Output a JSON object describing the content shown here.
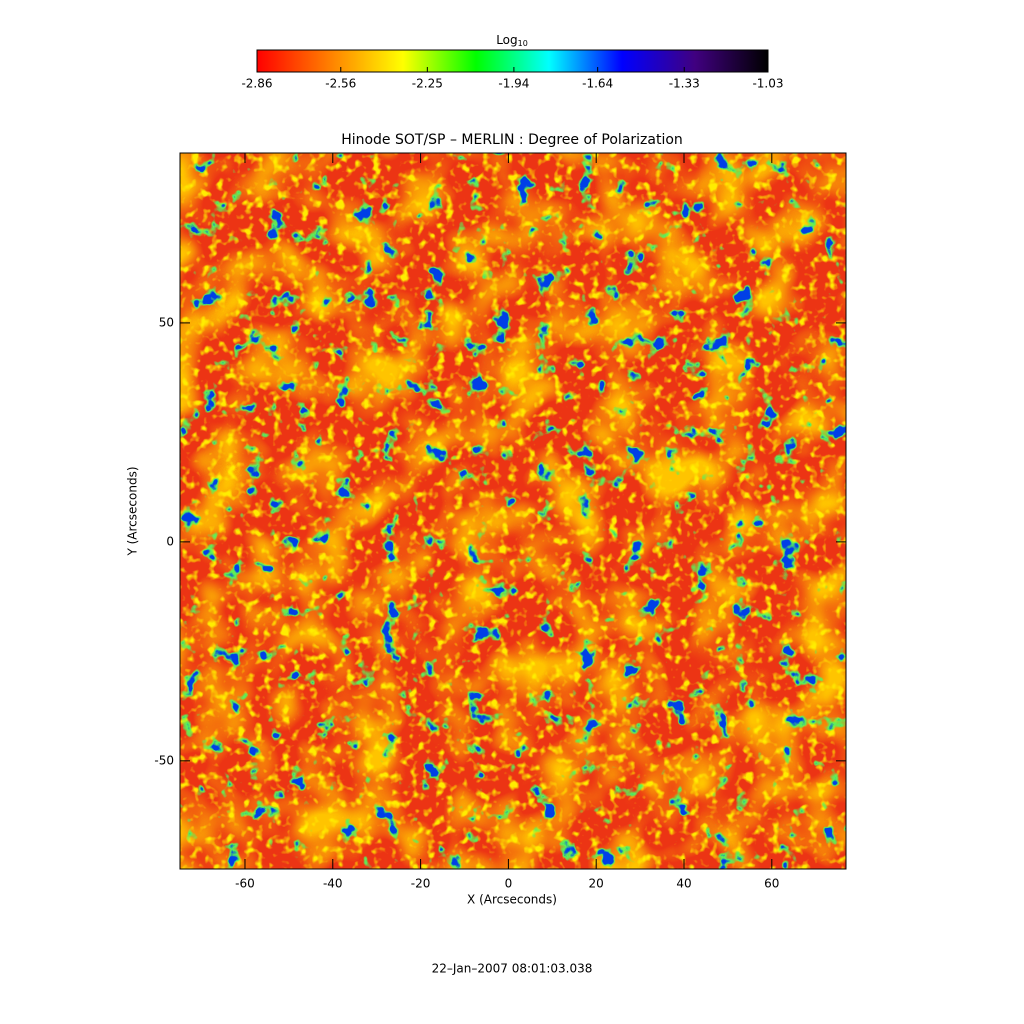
{
  "chart_data": {
    "type": "image",
    "title": "Hinode SOT/SP – MERLIN : Degree of Polarization",
    "x_label": "X (Arcseconds)",
    "y_label": "Y (Arcseconds)",
    "footer": "22–Jan–2007 08:01:03.038",
    "xlim": [
      -74.8,
      76.9
    ],
    "xticks": [
      -60,
      -40,
      -20,
      0,
      20,
      40,
      60
    ],
    "ylim": [
      -74.7,
      88.8
    ],
    "yticks": [
      -50,
      0,
      50
    ],
    "colorbar": {
      "label": {
        "base": "Log",
        "subscript": "10"
      },
      "lim": [
        -2.86,
        -1.03
      ],
      "ticks": [
        -2.86,
        -2.56,
        -2.25,
        -1.94,
        -1.64,
        -1.33,
        -1.03
      ],
      "colors": [
        "#ff0000",
        "#ff8000",
        "#ffff00",
        "#00ff00",
        "#00ffff",
        "#0000ff",
        "#400080",
        "#000000"
      ]
    }
  }
}
